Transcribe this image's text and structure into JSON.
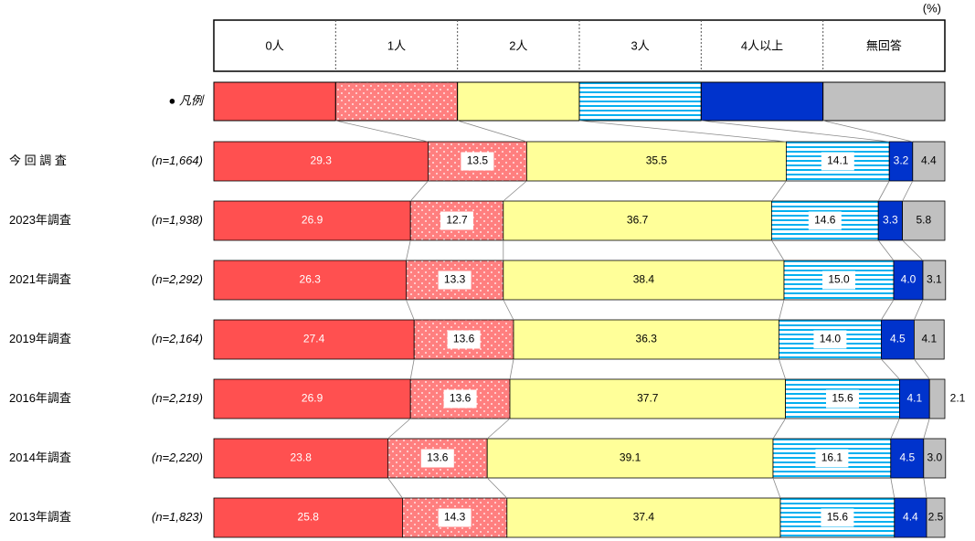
{
  "chart_data": {
    "type": "stacked-bar-100",
    "unit": "(%)",
    "legend_label": "● 凡例",
    "categories": [
      "今 回 調 査",
      "2023年調査",
      "2021年調査",
      "2019年調査",
      "2016年調査",
      "2014年調査",
      "2013年調査"
    ],
    "sample_sizes": [
      "(n=1,664)",
      "(n=1,938)",
      "(n=2,292)",
      "(n=2,164)",
      "(n=2,219)",
      "(n=2,220)",
      "(n=1,823)"
    ],
    "xlim": [
      0,
      100
    ],
    "series": [
      {
        "name": "0人",
        "color": "#ff5050",
        "pattern": "solid",
        "values": [
          29.3,
          26.9,
          26.3,
          27.4,
          26.9,
          23.8,
          25.8
        ],
        "value_labels": [
          "29.3",
          "26.9",
          "26.3",
          "27.4",
          "26.9",
          "23.8",
          "25.8"
        ]
      },
      {
        "name": "1人",
        "color": "#ff7f7f",
        "pattern": "dots",
        "values": [
          13.5,
          12.7,
          13.3,
          13.6,
          13.6,
          13.6,
          14.3
        ],
        "value_labels": [
          "13.5",
          "12.7",
          "13.3",
          "13.6",
          "13.6",
          "13.6",
          "14.3"
        ]
      },
      {
        "name": "2人",
        "color": "#ffff99",
        "pattern": "solid",
        "values": [
          35.5,
          36.7,
          38.4,
          36.3,
          37.7,
          39.1,
          37.4
        ],
        "value_labels": [
          "35.5",
          "36.7",
          "38.4",
          "36.3",
          "37.7",
          "39.1",
          "37.4"
        ]
      },
      {
        "name": "3人",
        "color": "#00b0f0",
        "pattern": "stripes",
        "values": [
          14.1,
          14.6,
          15.0,
          14.0,
          15.6,
          16.1,
          15.6
        ],
        "value_labels": [
          "14.1",
          "14.6",
          "15.0",
          "14.0",
          "15.6",
          "16.1",
          "15.6"
        ]
      },
      {
        "name": "4人以上",
        "color": "#0033cc",
        "pattern": "solid",
        "values": [
          3.2,
          3.3,
          4.0,
          4.5,
          4.1,
          4.5,
          4.4
        ],
        "value_labels": [
          "3.2",
          "3.3",
          "4.0",
          "4.5",
          "4.1",
          "4.5",
          "4.4"
        ]
      },
      {
        "name": "無回答",
        "color": "#c0c0c0",
        "pattern": "solid",
        "values": [
          4.4,
          5.8,
          3.1,
          4.1,
          2.1,
          3.0,
          2.5
        ],
        "value_labels": [
          "4.4",
          "5.8",
          "3.1",
          "4.1",
          "2.1",
          "3.0",
          "2.5"
        ]
      }
    ]
  }
}
